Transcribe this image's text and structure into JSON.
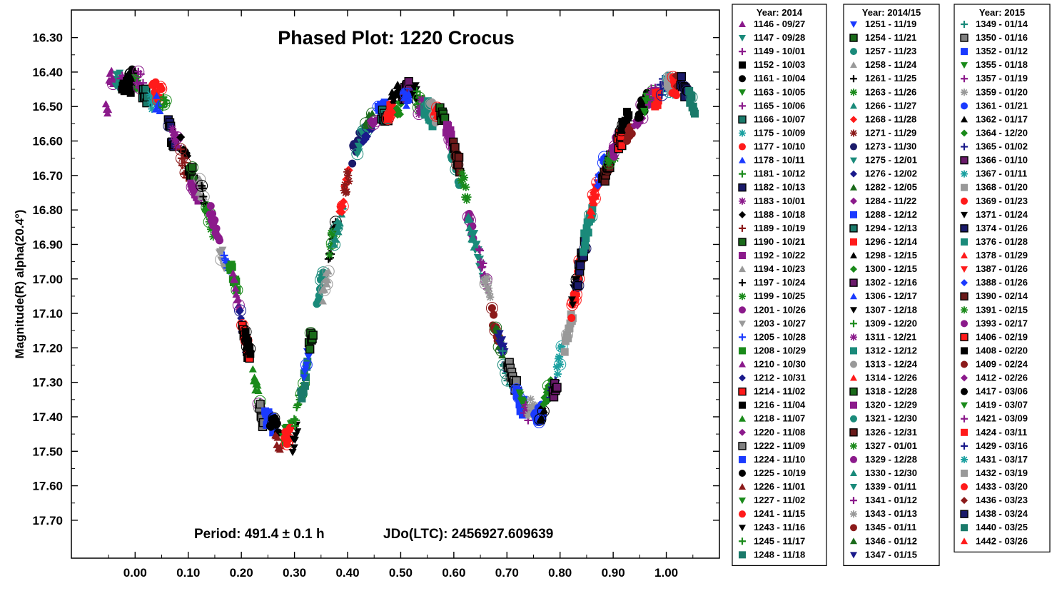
{
  "chart_data": {
    "type": "scatter",
    "title": "Phased Plot: 1220 Crocus",
    "ylabel": "Magnitude(R) alpha(20.4°)",
    "xlabel": "",
    "xlim": [
      -0.12,
      1.1
    ],
    "ylim": [
      16.22,
      17.81
    ],
    "y_inverted": true,
    "x_ticks": [
      "0.00",
      "0.10",
      "0.20",
      "0.30",
      "0.40",
      "0.50",
      "0.60",
      "0.70",
      "0.80",
      "0.90",
      "1.00"
    ],
    "x_tick_values": [
      0,
      0.1,
      0.2,
      0.3,
      0.4,
      0.5,
      0.6,
      0.7,
      0.8,
      0.9,
      1.0
    ],
    "y_ticks": [
      "16.30",
      "16.40",
      "16.50",
      "16.60",
      "16.70",
      "16.80",
      "16.90",
      "17.00",
      "17.10",
      "17.20",
      "17.30",
      "17.40",
      "17.50",
      "17.60",
      "17.70"
    ],
    "y_tick_values": [
      16.3,
      16.4,
      16.5,
      16.6,
      16.7,
      16.8,
      16.9,
      17.0,
      17.1,
      17.2,
      17.3,
      17.4,
      17.5,
      17.6,
      17.7
    ],
    "annotations": [
      {
        "text": "Period: 491.4 ± 0.1 h"
      },
      {
        "text": "JDo(LTC): 2456927.609639"
      }
    ],
    "grid": false,
    "lightcurve": [
      [
        -0.05,
        16.43
      ],
      [
        0.0,
        16.44
      ],
      [
        0.02,
        16.47
      ],
      [
        0.04,
        16.48
      ],
      [
        0.06,
        16.52
      ],
      [
        0.08,
        16.6
      ],
      [
        0.1,
        16.68
      ],
      [
        0.12,
        16.75
      ],
      [
        0.14,
        16.82
      ],
      [
        0.16,
        16.9
      ],
      [
        0.18,
        16.98
      ],
      [
        0.2,
        17.1
      ],
      [
        0.22,
        17.25
      ],
      [
        0.24,
        17.4
      ],
      [
        0.26,
        17.45
      ],
      [
        0.28,
        17.48
      ],
      [
        0.3,
        17.45
      ],
      [
        0.32,
        17.3
      ],
      [
        0.34,
        17.12
      ],
      [
        0.36,
        16.98
      ],
      [
        0.38,
        16.84
      ],
      [
        0.4,
        16.7
      ],
      [
        0.42,
        16.6
      ],
      [
        0.45,
        16.53
      ],
      [
        0.48,
        16.5
      ],
      [
        0.52,
        16.46
      ],
      [
        0.55,
        16.48
      ],
      [
        0.58,
        16.56
      ],
      [
        0.6,
        16.64
      ],
      [
        0.62,
        16.75
      ],
      [
        0.64,
        16.9
      ],
      [
        0.66,
        17.02
      ],
      [
        0.68,
        17.12
      ],
      [
        0.7,
        17.25
      ],
      [
        0.72,
        17.33
      ],
      [
        0.74,
        17.37
      ],
      [
        0.76,
        17.38
      ],
      [
        0.78,
        17.35
      ],
      [
        0.8,
        17.25
      ],
      [
        0.82,
        17.1
      ],
      [
        0.84,
        16.92
      ],
      [
        0.86,
        16.8
      ],
      [
        0.88,
        16.7
      ],
      [
        0.9,
        16.62
      ],
      [
        0.93,
        16.55
      ],
      [
        0.96,
        16.48
      ],
      [
        1.0,
        16.43
      ],
      [
        1.03,
        16.46
      ],
      [
        1.05,
        16.52
      ]
    ],
    "legend_columns": [
      {
        "title": "Year: 2014",
        "entries": [
          {
            "label": "1146 - 09/27",
            "marker": "tri-up",
            "color": "#8b1a8b"
          },
          {
            "label": "1147 - 09/28",
            "marker": "tri-down",
            "color": "#1a8a7a"
          },
          {
            "label": "1149 - 10/01",
            "marker": "plus",
            "color": "#8b1a8b"
          },
          {
            "label": "1152 - 10/03",
            "marker": "square",
            "color": "#000000"
          },
          {
            "label": "1161 - 10/04",
            "marker": "circle",
            "color": "#000000"
          },
          {
            "label": "1163 - 10/05",
            "marker": "tri-down",
            "color": "#1a8a1a"
          },
          {
            "label": "1165 - 10/06",
            "marker": "plus",
            "color": "#8b1a8b"
          },
          {
            "label": "1166 - 10/07",
            "marker": "square-outline",
            "color": "#1a7a6a"
          },
          {
            "label": "1175 - 10/09",
            "marker": "star",
            "color": "#1aa0a0"
          },
          {
            "label": "1177 - 10/10",
            "marker": "circle",
            "color": "#ff1a1a"
          },
          {
            "label": "1178 - 10/11",
            "marker": "tri-up",
            "color": "#1a3aff"
          },
          {
            "label": "1181 - 10/12",
            "marker": "plus",
            "color": "#1a8a1a"
          },
          {
            "label": "1182 - 10/13",
            "marker": "square-outline",
            "color": "#1a1a6a"
          },
          {
            "label": "1183 - 10/01",
            "marker": "star",
            "color": "#8b1a8b"
          },
          {
            "label": "1188 - 10/18",
            "marker": "diamond",
            "color": "#000000"
          },
          {
            "label": "1189 - 10/19",
            "marker": "plus",
            "color": "#8b1a1a"
          },
          {
            "label": "1190 - 10/21",
            "marker": "square-outline",
            "color": "#1a6a1a"
          },
          {
            "label": "1192 - 10/22",
            "marker": "square",
            "color": "#8b1a8b"
          },
          {
            "label": "1194 - 10/23",
            "marker": "tri-up",
            "color": "#999999"
          },
          {
            "label": "1197 - 10/24",
            "marker": "plus",
            "color": "#000000"
          },
          {
            "label": "1199 - 10/25",
            "marker": "star",
            "color": "#1a8a1a"
          },
          {
            "label": "1201 - 10/26",
            "marker": "circle",
            "color": "#8b1a8b"
          },
          {
            "label": "1203 - 10/27",
            "marker": "tri-down",
            "color": "#999999"
          },
          {
            "label": "1205 - 10/28",
            "marker": "plus",
            "color": "#1a3aff"
          },
          {
            "label": "1208 - 10/29",
            "marker": "square",
            "color": "#1a8a1a"
          },
          {
            "label": "1210 - 10/30",
            "marker": "tri-up",
            "color": "#8b1a8b"
          },
          {
            "label": "1212 - 10/31",
            "marker": "diamond",
            "color": "#1a1a8b"
          },
          {
            "label": "1214 - 11/02",
            "marker": "square-outline",
            "color": "#ff1a1a"
          },
          {
            "label": "1216 - 11/04",
            "marker": "square",
            "color": "#000000"
          },
          {
            "label": "1218 - 11/07",
            "marker": "tri-up",
            "color": "#1a8a1a"
          },
          {
            "label": "1220 - 11/08",
            "marker": "diamond",
            "color": "#8b1a8b"
          },
          {
            "label": "1222 - 11/09",
            "marker": "square-outline",
            "color": "#808080"
          },
          {
            "label": "1224 - 11/10",
            "marker": "square",
            "color": "#1a3aff"
          },
          {
            "label": "1225 - 10/19",
            "marker": "circle",
            "color": "#000000"
          },
          {
            "label": "1226 - 11/01",
            "marker": "tri-up",
            "color": "#8b1a1a"
          },
          {
            "label": "1227 - 11/02",
            "marker": "tri-down",
            "color": "#1a8a1a"
          },
          {
            "label": "1241 - 11/15",
            "marker": "circle",
            "color": "#ff1a1a"
          },
          {
            "label": "1243 - 11/16",
            "marker": "tri-down",
            "color": "#000000"
          },
          {
            "label": "1245 - 11/17",
            "marker": "plus",
            "color": "#1a8a1a"
          },
          {
            "label": "1248 - 11/18",
            "marker": "square",
            "color": "#1a7a6a"
          }
        ]
      },
      {
        "title": "Year: 2014/15",
        "entries": [
          {
            "label": "1251 - 11/19",
            "marker": "tri-down",
            "color": "#1a3aff"
          },
          {
            "label": "1254 - 11/21",
            "marker": "square-outline",
            "color": "#1a6a1a"
          },
          {
            "label": "1257 - 11/23",
            "marker": "circle",
            "color": "#1a8a7a"
          },
          {
            "label": "1258 - 11/24",
            "marker": "tri-up",
            "color": "#999999"
          },
          {
            "label": "1261 - 11/25",
            "marker": "plus",
            "color": "#000000"
          },
          {
            "label": "1263 - 11/26",
            "marker": "star",
            "color": "#1a8a1a"
          },
          {
            "label": "1266 - 11/27",
            "marker": "tri-up",
            "color": "#1a8a7a"
          },
          {
            "label": "1268 - 11/28",
            "marker": "diamond",
            "color": "#ff1a1a"
          },
          {
            "label": "1271 - 11/29",
            "marker": "star",
            "color": "#8b1a1a"
          },
          {
            "label": "1273 - 11/30",
            "marker": "circle",
            "color": "#1a1a6a"
          },
          {
            "label": "1275 - 12/01",
            "marker": "tri-down",
            "color": "#1a8a7a"
          },
          {
            "label": "1276 - 12/02",
            "marker": "diamond",
            "color": "#1a1a8b"
          },
          {
            "label": "1282 - 12/05",
            "marker": "tri-up",
            "color": "#1a6a1a"
          },
          {
            "label": "1284 - 11/22",
            "marker": "diamond",
            "color": "#8b1a8b"
          },
          {
            "label": "1288 - 12/12",
            "marker": "square",
            "color": "#1a3aff"
          },
          {
            "label": "1294 - 12/13",
            "marker": "square-outline",
            "color": "#1a7a6a"
          },
          {
            "label": "1296 - 12/14",
            "marker": "square",
            "color": "#ff1a1a"
          },
          {
            "label": "1298 - 12/15",
            "marker": "tri-up",
            "color": "#000000"
          },
          {
            "label": "1300 - 12/15",
            "marker": "diamond",
            "color": "#1a8a1a"
          },
          {
            "label": "1302 - 12/16",
            "marker": "square-outline",
            "color": "#6a1a6a"
          },
          {
            "label": "1306 - 12/17",
            "marker": "tri-up",
            "color": "#1a3aff"
          },
          {
            "label": "1307 - 12/18",
            "marker": "tri-down",
            "color": "#000000"
          },
          {
            "label": "1309 - 12/20",
            "marker": "plus",
            "color": "#1a8a1a"
          },
          {
            "label": "1311 - 12/21",
            "marker": "star",
            "color": "#8b1a8b"
          },
          {
            "label": "1312 - 12/12",
            "marker": "square",
            "color": "#1a8a7a"
          },
          {
            "label": "1313 - 12/24",
            "marker": "circle",
            "color": "#999999"
          },
          {
            "label": "1314 - 12/26",
            "marker": "tri-up",
            "color": "#ff1a1a"
          },
          {
            "label": "1318 - 12/28",
            "marker": "square-outline",
            "color": "#1a6a1a"
          },
          {
            "label": "1320 - 12/29",
            "marker": "square",
            "color": "#8b1a8b"
          },
          {
            "label": "1321 - 12/30",
            "marker": "circle",
            "color": "#1a8a7a"
          },
          {
            "label": "1326 - 12/31",
            "marker": "square-outline",
            "color": "#6a1a1a"
          },
          {
            "label": "1327 - 01/01",
            "marker": "star",
            "color": "#1a8a1a"
          },
          {
            "label": "1329 - 12/28",
            "marker": "circle",
            "color": "#8b1a8b"
          },
          {
            "label": "1330 - 12/30",
            "marker": "tri-up",
            "color": "#1a8a7a"
          },
          {
            "label": "1339 - 01/11",
            "marker": "tri-down",
            "color": "#1a8a7a"
          },
          {
            "label": "1341 - 01/12",
            "marker": "plus",
            "color": "#8b1a8b"
          },
          {
            "label": "1343 - 01/13",
            "marker": "star",
            "color": "#999999"
          },
          {
            "label": "1345 - 01/11",
            "marker": "circle",
            "color": "#8b1a1a"
          },
          {
            "label": "1346 - 01/12",
            "marker": "tri-up",
            "color": "#1a6a1a"
          },
          {
            "label": "1347 - 01/15",
            "marker": "tri-down",
            "color": "#1a1a8b"
          }
        ]
      },
      {
        "title": "Year: 2015",
        "entries": [
          {
            "label": "1349 - 01/14",
            "marker": "plus",
            "color": "#1a8a7a"
          },
          {
            "label": "1350 - 01/16",
            "marker": "square-outline",
            "color": "#808080"
          },
          {
            "label": "1352 - 01/12",
            "marker": "square",
            "color": "#1a3aff"
          },
          {
            "label": "1355 - 01/18",
            "marker": "tri-down",
            "color": "#1a8a1a"
          },
          {
            "label": "1357 - 01/19",
            "marker": "plus",
            "color": "#8b1a8b"
          },
          {
            "label": "1359 - 01/20",
            "marker": "star",
            "color": "#999999"
          },
          {
            "label": "1361 - 01/21",
            "marker": "circle",
            "color": "#1a3aff"
          },
          {
            "label": "1362 - 01/17",
            "marker": "tri-up",
            "color": "#000000"
          },
          {
            "label": "1364 - 12/20",
            "marker": "diamond",
            "color": "#1a8a1a"
          },
          {
            "label": "1365 - 01/02",
            "marker": "plus",
            "color": "#1a1a8b"
          },
          {
            "label": "1366 - 01/10",
            "marker": "square-outline",
            "color": "#6a1a6a"
          },
          {
            "label": "1367 - 01/11",
            "marker": "star",
            "color": "#1aa0a0"
          },
          {
            "label": "1368 - 01/20",
            "marker": "square",
            "color": "#999999"
          },
          {
            "label": "1369 - 01/23",
            "marker": "circle",
            "color": "#ff1a1a"
          },
          {
            "label": "1371 - 01/24",
            "marker": "tri-down",
            "color": "#000000"
          },
          {
            "label": "1374 - 01/26",
            "marker": "square-outline",
            "color": "#1a1a6a"
          },
          {
            "label": "1376 - 01/28",
            "marker": "square",
            "color": "#1a8a7a"
          },
          {
            "label": "1378 - 01/29",
            "marker": "tri-up",
            "color": "#ff1a1a"
          },
          {
            "label": "1387 - 01/26",
            "marker": "tri-down",
            "color": "#ff1a1a"
          },
          {
            "label": "1388 - 01/26",
            "marker": "diamond",
            "color": "#1a3aff"
          },
          {
            "label": "1390 - 02/14",
            "marker": "square-outline",
            "color": "#6a1a1a"
          },
          {
            "label": "1391 - 02/15",
            "marker": "star",
            "color": "#1a8a1a"
          },
          {
            "label": "1393 - 02/17",
            "marker": "circle",
            "color": "#8b1a8b"
          },
          {
            "label": "1406 - 02/19",
            "marker": "square-outline",
            "color": "#ff1a1a"
          },
          {
            "label": "1408 - 02/20",
            "marker": "square",
            "color": "#000000"
          },
          {
            "label": "1409 - 02/24",
            "marker": "circle",
            "color": "#8b1a1a"
          },
          {
            "label": "1412 - 02/26",
            "marker": "diamond",
            "color": "#8b1a8b"
          },
          {
            "label": "1417 - 03/06",
            "marker": "circle",
            "color": "#000000"
          },
          {
            "label": "1419 - 03/07",
            "marker": "tri-down",
            "color": "#1a8a1a"
          },
          {
            "label": "1421 - 03/09",
            "marker": "plus",
            "color": "#8b1a8b"
          },
          {
            "label": "1424 - 03/11",
            "marker": "square",
            "color": "#ff1a1a"
          },
          {
            "label": "1429 - 03/16",
            "marker": "plus",
            "color": "#1a1a8b"
          },
          {
            "label": "1431 - 03/17",
            "marker": "star",
            "color": "#1aa0a0"
          },
          {
            "label": "1432 - 03/19",
            "marker": "square",
            "color": "#999999"
          },
          {
            "label": "1433 - 03/20",
            "marker": "circle",
            "color": "#ff1a1a"
          },
          {
            "label": "1436 - 03/23",
            "marker": "diamond",
            "color": "#8b1a1a"
          },
          {
            "label": "1438 - 03/24",
            "marker": "square-outline",
            "color": "#1a1a6a"
          },
          {
            "label": "1440 - 03/25",
            "marker": "square",
            "color": "#1a7a6a"
          },
          {
            "label": "1442 - 03/26",
            "marker": "tri-up",
            "color": "#ff1a1a"
          }
        ]
      }
    ]
  }
}
